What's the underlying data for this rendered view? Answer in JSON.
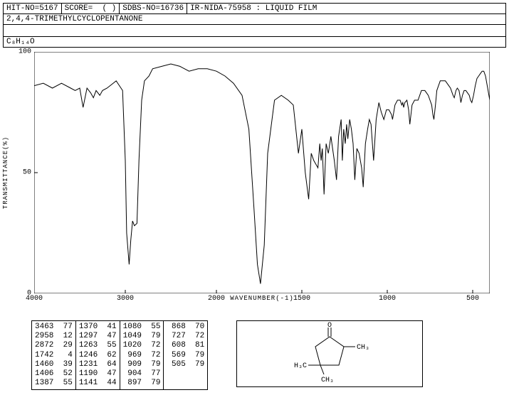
{
  "header": {
    "hit_no_label": "HIT-NO=",
    "hit_no": "5167",
    "score_label": "SCORE=",
    "score": "(  )",
    "sdbs_label": "SDBS-NO=",
    "sdbs_no": "16736",
    "spectrum_id": "IR-NIDA-75958 : LIQUID FILM"
  },
  "compound_name": "2,4,4-TRIMETHYLCYCLOPENTANONE",
  "formula": "C₈H₁₄O",
  "chart": {
    "type": "line",
    "ylabel": "TRANSMITTANCE(%)",
    "xlabel": "WAVENUMBER(-1)",
    "xlim": [
      4000,
      400
    ],
    "ylim": [
      0,
      100
    ],
    "xticks": [
      4000,
      3000,
      2000,
      1500,
      1000,
      500
    ],
    "yticks": [
      0,
      50,
      100
    ],
    "line_color": "#000000",
    "background_color": "#ffffff",
    "border_color": "#000000",
    "data": [
      [
        4000,
        86
      ],
      [
        3900,
        87
      ],
      [
        3800,
        85
      ],
      [
        3700,
        87
      ],
      [
        3600,
        85
      ],
      [
        3550,
        84
      ],
      [
        3500,
        85
      ],
      [
        3463,
        77
      ],
      [
        3420,
        85
      ],
      [
        3380,
        83
      ],
      [
        3350,
        81
      ],
      [
        3320,
        84
      ],
      [
        3280,
        82
      ],
      [
        3250,
        84
      ],
      [
        3200,
        85
      ],
      [
        3100,
        88
      ],
      [
        3030,
        84
      ],
      [
        3000,
        55
      ],
      [
        2985,
        25
      ],
      [
        2958,
        12
      ],
      [
        2940,
        22
      ],
      [
        2920,
        30
      ],
      [
        2900,
        28
      ],
      [
        2872,
        29
      ],
      [
        2850,
        55
      ],
      [
        2820,
        80
      ],
      [
        2790,
        88
      ],
      [
        2740,
        90
      ],
      [
        2700,
        93
      ],
      [
        2600,
        94
      ],
      [
        2500,
        95
      ],
      [
        2400,
        94
      ],
      [
        2300,
        92
      ],
      [
        2200,
        93
      ],
      [
        2100,
        93
      ],
      [
        2000,
        92
      ],
      [
        1950,
        90
      ],
      [
        1900,
        87
      ],
      [
        1850,
        82
      ],
      [
        1810,
        68
      ],
      [
        1780,
        35
      ],
      [
        1760,
        12
      ],
      [
        1742,
        4
      ],
      [
        1720,
        20
      ],
      [
        1700,
        58
      ],
      [
        1660,
        80
      ],
      [
        1620,
        82
      ],
      [
        1580,
        80
      ],
      [
        1550,
        78
      ],
      [
        1520,
        58
      ],
      [
        1500,
        68
      ],
      [
        1480,
        50
      ],
      [
        1460,
        39
      ],
      [
        1445,
        58
      ],
      [
        1430,
        55
      ],
      [
        1406,
        52
      ],
      [
        1395,
        62
      ],
      [
        1387,
        55
      ],
      [
        1380,
        60
      ],
      [
        1370,
        41
      ],
      [
        1358,
        62
      ],
      [
        1345,
        58
      ],
      [
        1330,
        65
      ],
      [
        1310,
        55
      ],
      [
        1297,
        47
      ],
      [
        1285,
        65
      ],
      [
        1270,
        72
      ],
      [
        1263,
        55
      ],
      [
        1255,
        68
      ],
      [
        1246,
        62
      ],
      [
        1238,
        70
      ],
      [
        1231,
        64
      ],
      [
        1220,
        72
      ],
      [
        1210,
        68
      ],
      [
        1200,
        62
      ],
      [
        1190,
        47
      ],
      [
        1178,
        60
      ],
      [
        1165,
        58
      ],
      [
        1150,
        52
      ],
      [
        1141,
        44
      ],
      [
        1128,
        62
      ],
      [
        1115,
        68
      ],
      [
        1105,
        72
      ],
      [
        1095,
        70
      ],
      [
        1080,
        55
      ],
      [
        1065,
        72
      ],
      [
        1049,
        79
      ],
      [
        1035,
        75
      ],
      [
        1020,
        72
      ],
      [
        1005,
        76
      ],
      [
        990,
        76
      ],
      [
        975,
        74
      ],
      [
        969,
        72
      ],
      [
        955,
        78
      ],
      [
        940,
        80
      ],
      [
        925,
        80
      ],
      [
        915,
        78
      ],
      [
        909,
        79
      ],
      [
        904,
        77
      ],
      [
        897,
        79
      ],
      [
        885,
        80
      ],
      [
        875,
        76
      ],
      [
        868,
        70
      ],
      [
        855,
        78
      ],
      [
        840,
        80
      ],
      [
        830,
        80
      ],
      [
        820,
        80
      ],
      [
        810,
        82
      ],
      [
        800,
        84
      ],
      [
        790,
        84
      ],
      [
        780,
        84
      ],
      [
        770,
        83
      ],
      [
        760,
        82
      ],
      [
        750,
        80
      ],
      [
        740,
        78
      ],
      [
        733,
        74
      ],
      [
        727,
        72
      ],
      [
        718,
        78
      ],
      [
        710,
        84
      ],
      [
        700,
        86
      ],
      [
        690,
        88
      ],
      [
        680,
        88
      ],
      [
        670,
        88
      ],
      [
        660,
        88
      ],
      [
        650,
        87
      ],
      [
        640,
        86
      ],
      [
        630,
        85
      ],
      [
        620,
        83
      ],
      [
        615,
        82
      ],
      [
        608,
        81
      ],
      [
        598,
        84
      ],
      [
        590,
        85
      ],
      [
        580,
        84
      ],
      [
        575,
        82
      ],
      [
        569,
        79
      ],
      [
        560,
        82
      ],
      [
        550,
        84
      ],
      [
        540,
        84
      ],
      [
        530,
        83
      ],
      [
        520,
        82
      ],
      [
        513,
        80
      ],
      [
        505,
        79
      ],
      [
        495,
        82
      ],
      [
        485,
        86
      ],
      [
        475,
        89
      ],
      [
        465,
        90
      ],
      [
        455,
        91
      ],
      [
        445,
        92
      ],
      [
        435,
        92
      ],
      [
        425,
        90
      ],
      [
        415,
        86
      ],
      [
        405,
        82
      ],
      [
        400,
        80
      ]
    ]
  },
  "peaks": {
    "columns": [
      [
        [
          3463,
          77
        ],
        [
          2958,
          12
        ],
        [
          2872,
          29
        ],
        [
          1742,
          4
        ],
        [
          1460,
          39
        ],
        [
          1406,
          52
        ],
        [
          1387,
          55
        ]
      ],
      [
        [
          1370,
          41
        ],
        [
          1297,
          47
        ],
        [
          1263,
          55
        ],
        [
          1246,
          62
        ],
        [
          1231,
          64
        ],
        [
          1190,
          47
        ],
        [
          1141,
          44
        ]
      ],
      [
        [
          1080,
          55
        ],
        [
          1049,
          79
        ],
        [
          1020,
          72
        ],
        [
          969,
          72
        ],
        [
          909,
          79
        ],
        [
          904,
          77
        ],
        [
          897,
          79
        ]
      ],
      [
        [
          868,
          70
        ],
        [
          727,
          72
        ],
        [
          608,
          81
        ],
        [
          569,
          79
        ],
        [
          505,
          79
        ]
      ]
    ]
  },
  "structure": {
    "labels": {
      "o": "O",
      "ch3_r": "CH₃",
      "ch3_b": "CH₃",
      "h3c": "H₃C"
    }
  }
}
